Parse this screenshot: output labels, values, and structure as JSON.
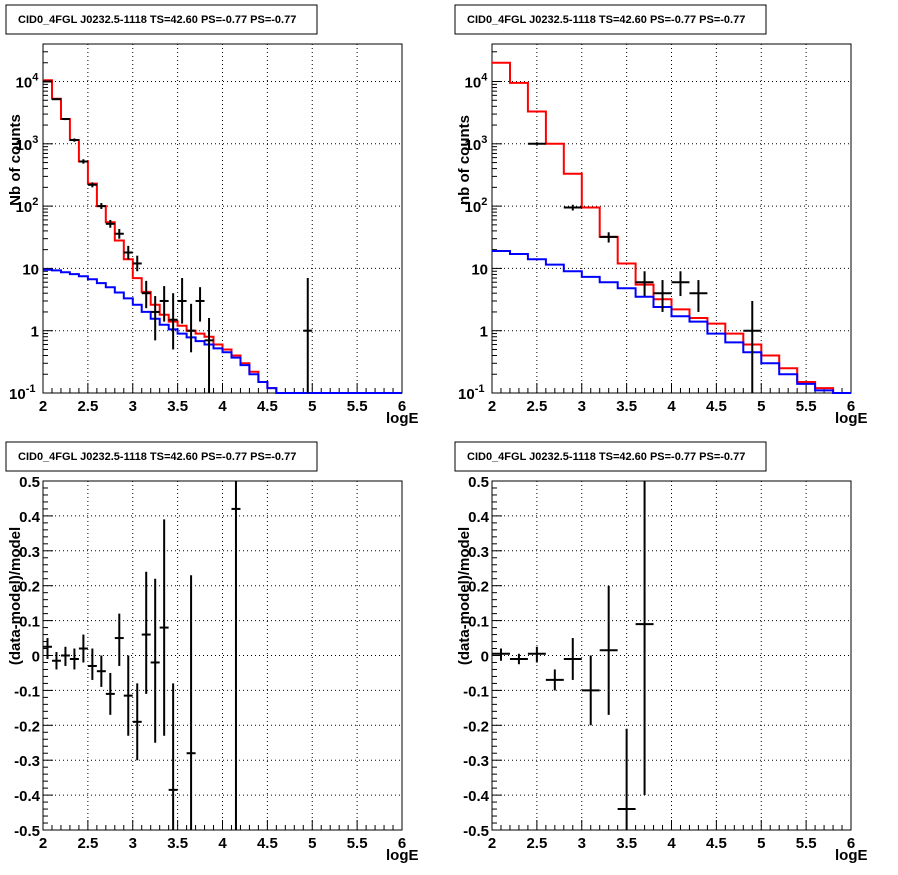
{
  "chart_data": [
    {
      "type": "line",
      "title": "CID0_4FGL J0232.5-1118 TS=42.60 PS=-0.77 PS=-0.77",
      "xlabel": "logE",
      "ylabel": "Nb of counts",
      "xlim": [
        2,
        6
      ],
      "ylim": [
        0.1,
        40000
      ],
      "yscale": "log",
      "grid": true,
      "x_ticks": [
        "2",
        "2.5",
        "3",
        "3.5",
        "4",
        "4.5",
        "5",
        "5.5",
        "6"
      ],
      "y_ticks": [
        {
          "v": 0.1,
          "base": "10",
          "exp": "-1"
        },
        {
          "v": 1,
          "base": "1",
          "exp": ""
        },
        {
          "v": 10,
          "base": "10",
          "exp": ""
        },
        {
          "v": 100,
          "base": "10",
          "exp": "2"
        },
        {
          "v": 1000,
          "base": "10",
          "exp": "3"
        },
        {
          "v": 10000,
          "base": "10",
          "exp": "4"
        }
      ],
      "bin_width": 0.1,
      "series": [
        {
          "color": "#ff0000",
          "style": "step",
          "values": [
            10500,
            5300,
            2500,
            1150,
            520,
            230,
            100,
            55,
            28,
            14,
            7,
            4.2,
            2.6,
            1.8,
            1.4,
            1.2,
            1.0,
            0.9,
            0.8,
            0.6,
            0.5,
            0.4,
            0.3,
            0.22,
            0.15,
            0.12,
            0.1,
            0.1,
            0.1,
            0.1,
            0.1,
            0.1,
            0.1,
            0.1,
            0.1,
            0.1,
            0.1,
            0.1,
            0.1,
            0.1
          ]
        },
        {
          "color": "#0000ff",
          "style": "step",
          "values": [
            9.5,
            9.3,
            8.7,
            8.1,
            7.5,
            6.7,
            5.8,
            5.0,
            4.1,
            3.3,
            2.6,
            2.0,
            1.55,
            1.25,
            1.05,
            0.9,
            0.78,
            0.68,
            0.6,
            0.52,
            0.45,
            0.37,
            0.28,
            0.2,
            0.15,
            0.12,
            0.1,
            0.1,
            0.1,
            0.1,
            0.1,
            0.1,
            0.1,
            0.1,
            0.1,
            0.1,
            0.1,
            0.1,
            0.1,
            0.1
          ]
        }
      ],
      "points": [
        {
          "x": 2.05,
          "y": 10000,
          "lo": 9800,
          "hi": 10200
        },
        {
          "x": 2.15,
          "y": 5200,
          "lo": 5050,
          "hi": 5350
        },
        {
          "x": 2.25,
          "y": 2500,
          "lo": 2400,
          "hi": 2600
        },
        {
          "x": 2.35,
          "y": 1150,
          "lo": 1080,
          "hi": 1220
        },
        {
          "x": 2.45,
          "y": 520,
          "lo": 480,
          "hi": 565
        },
        {
          "x": 2.55,
          "y": 220,
          "lo": 200,
          "hi": 240
        },
        {
          "x": 2.65,
          "y": 100,
          "lo": 90,
          "hi": 112
        },
        {
          "x": 2.75,
          "y": 52,
          "lo": 45,
          "hi": 60
        },
        {
          "x": 2.85,
          "y": 36,
          "lo": 30,
          "hi": 43
        },
        {
          "x": 2.95,
          "y": 18,
          "lo": 14,
          "hi": 23
        },
        {
          "x": 3.05,
          "y": 12,
          "lo": 9,
          "hi": 16
        },
        {
          "x": 3.15,
          "y": 4,
          "lo": 2.3,
          "hi": 6.3
        },
        {
          "x": 3.25,
          "y": 2,
          "lo": 0.7,
          "hi": 3.6
        },
        {
          "x": 3.35,
          "y": 3,
          "lo": 1.4,
          "hi": 5.2
        },
        {
          "x": 3.45,
          "y": 1.5,
          "lo": 0.5,
          "hi": 4
        },
        {
          "x": 3.55,
          "y": 3,
          "lo": 1.3,
          "hi": 7
        },
        {
          "x": 3.65,
          "y": 1,
          "lo": 0.45,
          "hi": 2.7
        },
        {
          "x": 3.75,
          "y": 3,
          "lo": 1.4,
          "hi": 5
        },
        {
          "x": 3.85,
          "y": 0.7,
          "lo": 0.1,
          "hi": 1.6
        },
        {
          "x": 4.95,
          "y": 1,
          "lo": 0.1,
          "hi": 7
        }
      ]
    },
    {
      "type": "line",
      "title": "CID0_4FGL J0232.5-1118 TS=42.60 PS=-0.77 PS=-0.77",
      "xlabel": "logE",
      "ylabel": "nb of counts",
      "xlim": [
        2,
        6
      ],
      "ylim": [
        0.1,
        40000
      ],
      "yscale": "log",
      "grid": true,
      "x_ticks": [
        "2",
        "2.5",
        "3",
        "3.5",
        "4",
        "4.5",
        "5",
        "5.5",
        "6"
      ],
      "y_ticks": [
        {
          "v": 0.1,
          "base": "10",
          "exp": "-1"
        },
        {
          "v": 1,
          "base": "1",
          "exp": ""
        },
        {
          "v": 10,
          "base": "10",
          "exp": ""
        },
        {
          "v": 100,
          "base": "10",
          "exp": "2"
        },
        {
          "v": 1000,
          "base": "10",
          "exp": "3"
        },
        {
          "v": 10000,
          "base": "10",
          "exp": "4"
        }
      ],
      "bin_width": 0.2,
      "series": [
        {
          "color": "#ff0000",
          "style": "step",
          "values": [
            20000,
            9500,
            3300,
            1000,
            330,
            95,
            32,
            12,
            5.5,
            3.2,
            2.2,
            1.6,
            1.3,
            0.9,
            0.6,
            0.4,
            0.25,
            0.15,
            0.12,
            0.1
          ]
        },
        {
          "color": "#0000ff",
          "style": "step",
          "values": [
            19,
            17,
            14,
            11.5,
            9,
            7.3,
            6,
            4.8,
            3.5,
            2.4,
            1.7,
            1.4,
            0.9,
            0.65,
            0.45,
            0.3,
            0.2,
            0.14,
            0.11,
            0.1
          ]
        }
      ],
      "points": [
        {
          "x": 2.5,
          "y": 1000,
          "lo": 940,
          "hi": 1060
        },
        {
          "x": 2.9,
          "y": 95,
          "lo": 85,
          "hi": 105
        },
        {
          "x": 3.3,
          "y": 32,
          "lo": 26,
          "hi": 38
        },
        {
          "x": 3.7,
          "y": 6,
          "lo": 3.6,
          "hi": 9
        },
        {
          "x": 3.9,
          "y": 4,
          "lo": 2,
          "hi": 6.5
        },
        {
          "x": 4.1,
          "y": 6,
          "lo": 3.6,
          "hi": 9
        },
        {
          "x": 4.3,
          "y": 4,
          "lo": 2,
          "hi": 6.5
        },
        {
          "x": 4.9,
          "y": 1,
          "lo": 0.1,
          "hi": 3
        }
      ]
    },
    {
      "type": "scatter",
      "title": "CID0_4FGL J0232.5-1118 TS=42.60 PS=-0.77 PS=-0.77",
      "xlabel": "logE",
      "ylabel": "(data-model)/model",
      "xlim": [
        2,
        6
      ],
      "ylim": [
        -0.5,
        0.5
      ],
      "grid": true,
      "x_ticks": [
        "2",
        "2.5",
        "3",
        "3.5",
        "4",
        "4.5",
        "5",
        "5.5",
        "6"
      ],
      "y_ticks": [
        "-0.5",
        "-0.4",
        "-0.3",
        "-0.2",
        "-0.1",
        "0",
        "0.1",
        "0.2",
        "0.3",
        "0.4",
        "0.5"
      ],
      "bin_width": 0.1,
      "points": [
        {
          "x": 2.05,
          "y": 0.025,
          "lo": -0.01,
          "hi": 0.05
        },
        {
          "x": 2.15,
          "y": -0.015,
          "lo": -0.04,
          "hi": 0.01
        },
        {
          "x": 2.25,
          "y": 0.0,
          "lo": -0.03,
          "hi": 0.025
        },
        {
          "x": 2.35,
          "y": -0.01,
          "lo": -0.04,
          "hi": 0.02
        },
        {
          "x": 2.45,
          "y": 0.02,
          "lo": -0.02,
          "hi": 0.06
        },
        {
          "x": 2.55,
          "y": -0.03,
          "lo": -0.07,
          "hi": 0.02
        },
        {
          "x": 2.65,
          "y": -0.045,
          "lo": -0.09,
          "hi": 0.0
        },
        {
          "x": 2.75,
          "y": -0.11,
          "lo": -0.17,
          "hi": -0.05
        },
        {
          "x": 2.85,
          "y": 0.05,
          "lo": -0.03,
          "hi": 0.12
        },
        {
          "x": 2.95,
          "y": -0.115,
          "lo": -0.23,
          "hi": 0.0
        },
        {
          "x": 3.05,
          "y": -0.19,
          "lo": -0.3,
          "hi": -0.08
        },
        {
          "x": 3.15,
          "y": 0.06,
          "lo": -0.11,
          "hi": 0.24
        },
        {
          "x": 3.25,
          "y": -0.02,
          "lo": -0.25,
          "hi": 0.22
        },
        {
          "x": 3.35,
          "y": 0.08,
          "lo": -0.23,
          "hi": 0.39
        },
        {
          "x": 3.45,
          "y": -0.385,
          "lo": -0.5,
          "hi": -0.08
        },
        {
          "x": 3.65,
          "y": -0.28,
          "lo": -0.5,
          "hi": 0.23
        },
        {
          "x": 4.15,
          "y": 0.42,
          "lo": -0.5,
          "hi": 0.5
        }
      ]
    },
    {
      "type": "scatter",
      "title": "CID0_4FGL J0232.5-1118 TS=42.60 PS=-0.77 PS=-0.77",
      "xlabel": "logE",
      "ylabel": "(data-model)/model",
      "xlim": [
        2,
        6
      ],
      "ylim": [
        -0.5,
        0.5
      ],
      "grid": true,
      "x_ticks": [
        "2",
        "2.5",
        "3",
        "3.5",
        "4",
        "4.5",
        "5",
        "5.5",
        "6"
      ],
      "y_ticks": [
        "-0.5",
        "-0.4",
        "-0.3",
        "-0.2",
        "-0.1",
        "0",
        "0.1",
        "0.2",
        "0.3",
        "0.4",
        "0.5"
      ],
      "bin_width": 0.2,
      "points": [
        {
          "x": 2.1,
          "y": 0.005,
          "lo": -0.015,
          "hi": 0.02
        },
        {
          "x": 2.3,
          "y": -0.01,
          "lo": -0.025,
          "hi": 0.005
        },
        {
          "x": 2.5,
          "y": 0.005,
          "lo": -0.02,
          "hi": 0.025
        },
        {
          "x": 2.7,
          "y": -0.07,
          "lo": -0.1,
          "hi": -0.04
        },
        {
          "x": 2.9,
          "y": -0.01,
          "lo": -0.07,
          "hi": 0.05
        },
        {
          "x": 3.1,
          "y": -0.1,
          "lo": -0.2,
          "hi": 0.0
        },
        {
          "x": 3.3,
          "y": 0.015,
          "lo": -0.17,
          "hi": 0.2
        },
        {
          "x": 3.5,
          "y": -0.44,
          "lo": -0.5,
          "hi": -0.21
        },
        {
          "x": 3.7,
          "y": 0.09,
          "lo": -0.4,
          "hi": 0.5
        }
      ]
    }
  ]
}
